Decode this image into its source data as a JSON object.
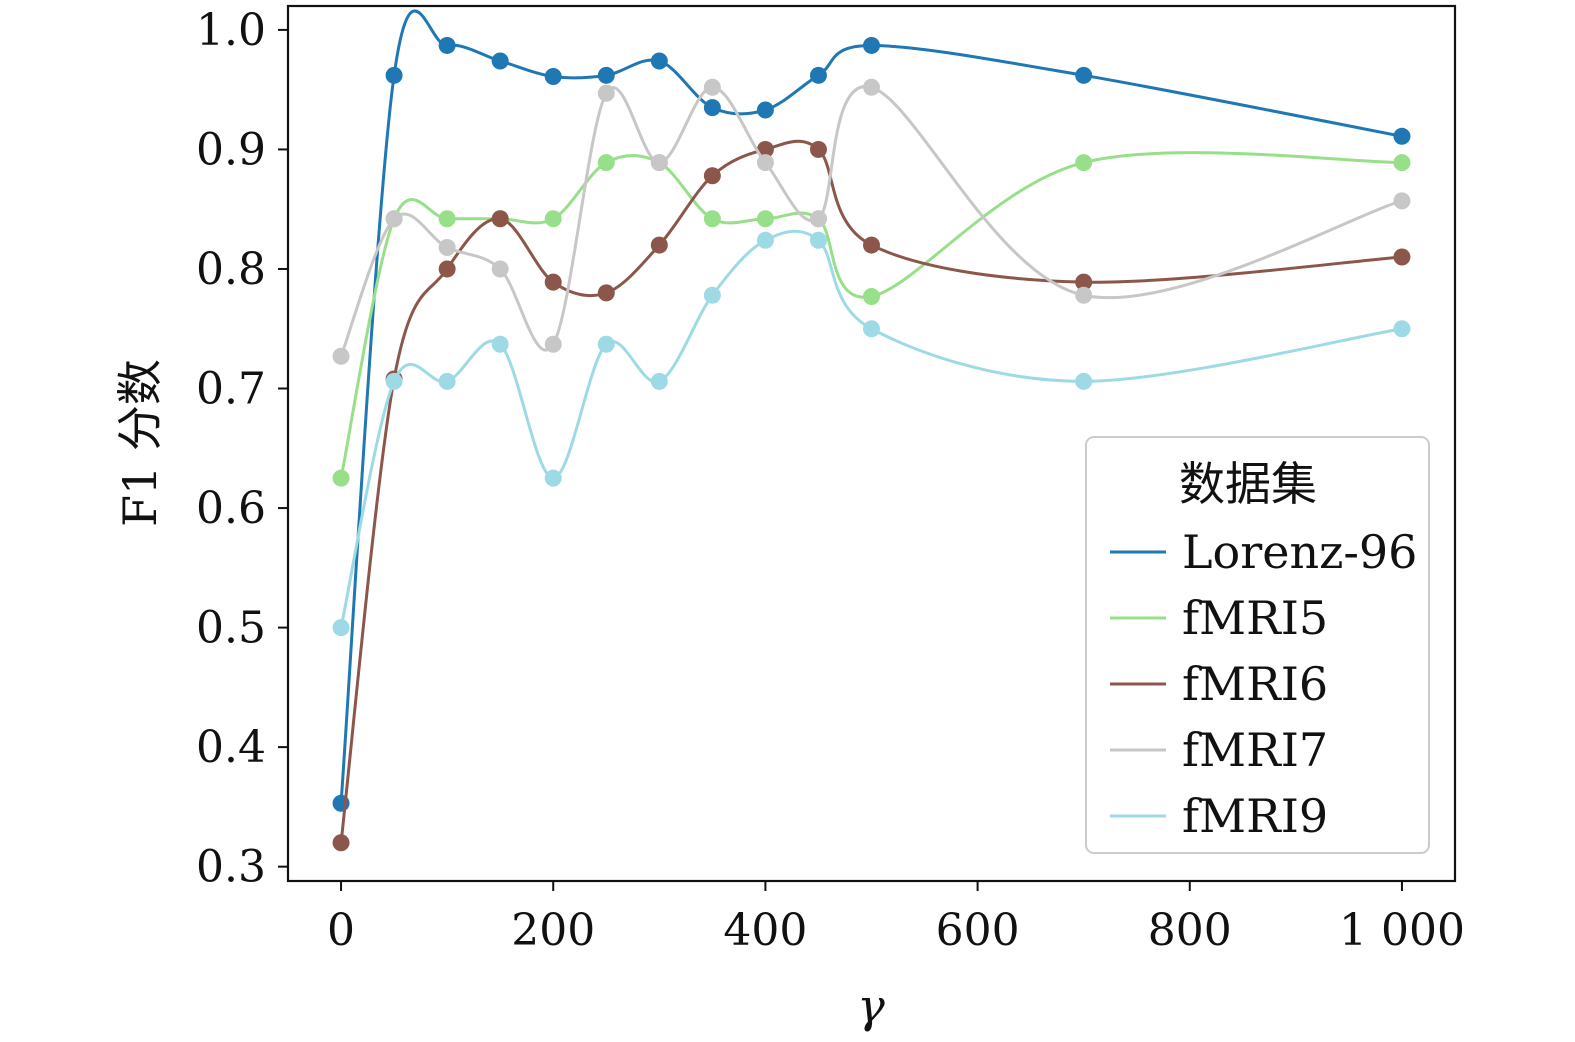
{
  "chart_data": {
    "type": "line",
    "title": "",
    "xlabel": "γ",
    "ylabel": "F1 分数",
    "xlim": [
      -50,
      1050
    ],
    "ylim": [
      0.288,
      1.02
    ],
    "xticks": [
      0,
      200,
      400,
      600,
      800,
      1000
    ],
    "xtick_labels": [
      "0",
      "200",
      "400",
      "600",
      "800",
      "1 000"
    ],
    "yticks": [
      0.3,
      0.4,
      0.5,
      0.6,
      0.7,
      0.8,
      0.9,
      1.0
    ],
    "ytick_labels": [
      "0.3",
      "0.4",
      "0.5",
      "0.6",
      "0.7",
      "0.8",
      "0.9",
      "1.0"
    ],
    "grid": false,
    "legend": {
      "title": "数据集",
      "placement": "center-right"
    },
    "x": [
      0,
      50,
      100,
      150,
      200,
      250,
      300,
      350,
      400,
      450,
      500,
      700,
      1000
    ],
    "series": [
      {
        "name": "Lorenz-96",
        "color": "#1f77b4",
        "values": [
          0.353,
          0.962,
          0.987,
          0.974,
          0.961,
          0.962,
          0.974,
          0.935,
          0.933,
          0.962,
          0.987,
          0.962,
          0.911
        ]
      },
      {
        "name": "fMRI5",
        "color": "#98df8a",
        "values": [
          0.625,
          0.842,
          0.842,
          0.842,
          0.842,
          0.889,
          0.889,
          0.842,
          0.842,
          0.842,
          0.777,
          0.889,
          0.889
        ]
      },
      {
        "name": "fMRI6",
        "color": "#8c564b",
        "values": [
          0.32,
          0.708,
          0.8,
          0.842,
          0.789,
          0.78,
          0.82,
          0.878,
          0.9,
          0.9,
          0.82,
          0.789,
          0.81
        ]
      },
      {
        "name": "fMRI7",
        "color": "#c7c7c7",
        "values": [
          0.727,
          0.842,
          0.818,
          0.8,
          0.737,
          0.947,
          0.889,
          0.952,
          0.889,
          0.842,
          0.952,
          0.778,
          0.857
        ]
      },
      {
        "name": "fMRI9",
        "color": "#9edae5",
        "values": [
          0.5,
          0.706,
          0.706,
          0.737,
          0.625,
          0.737,
          0.706,
          0.778,
          0.824,
          0.824,
          0.75,
          0.706,
          0.75
        ]
      }
    ]
  }
}
